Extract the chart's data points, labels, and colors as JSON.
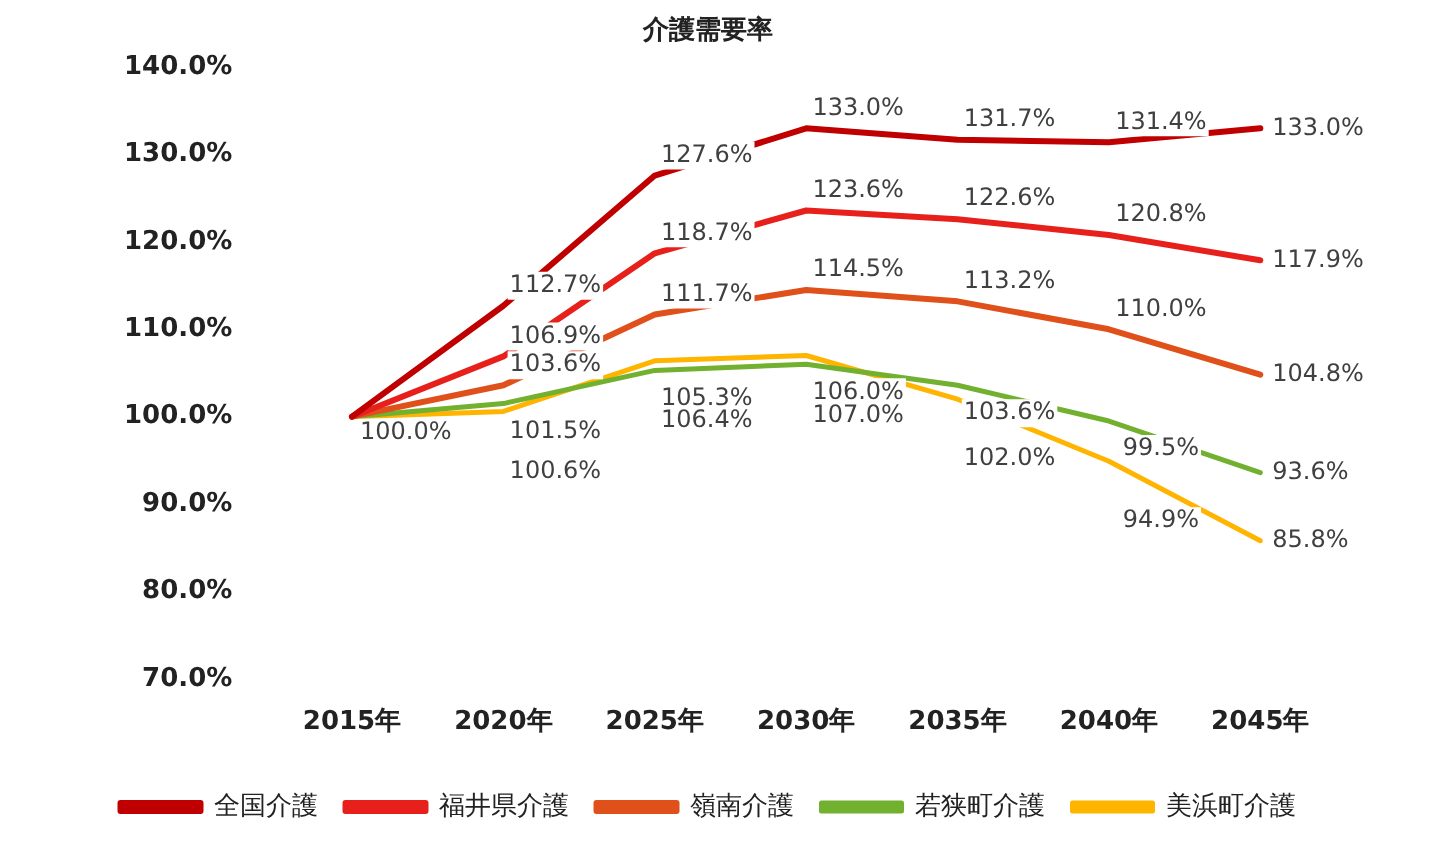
{
  "chart_data": {
    "type": "line",
    "title": "介護需要率",
    "categories": [
      "2015年",
      "2020年",
      "2025年",
      "2030年",
      "2035年",
      "2040年",
      "2045年"
    ],
    "series": [
      {
        "name": "全国介護",
        "color": "#c00000",
        "values": [
          100.0,
          112.7,
          127.6,
          133.0,
          131.7,
          131.4,
          133.0
        ],
        "value_labels": [
          null,
          "112.7%",
          "127.6%",
          "133.0%",
          "131.7%",
          "131.4%",
          "133.0%"
        ]
      },
      {
        "name": "福井県介護",
        "color": "#e8201c",
        "values": [
          100.0,
          106.9,
          118.7,
          123.6,
          122.6,
          120.8,
          117.9
        ],
        "value_labels": [
          null,
          "106.9%",
          "118.7%",
          "123.6%",
          "122.6%",
          "120.8%",
          "117.9%"
        ]
      },
      {
        "name": "嶺南介護",
        "color": "#e0501a",
        "values": [
          100.0,
          103.6,
          111.7,
          114.5,
          113.2,
          110.0,
          104.8
        ],
        "value_labels": [
          null,
          "103.6%",
          "111.7%",
          "114.5%",
          "113.2%",
          "110.0%",
          "104.8%"
        ]
      },
      {
        "name": "若狭町介護",
        "color": "#72b030",
        "values": [
          100.0,
          101.5,
          105.3,
          106.0,
          103.6,
          99.5,
          93.6
        ],
        "value_labels": [
          "100.0%",
          "101.5%",
          "105.3%",
          "106.0%",
          "103.6%",
          "99.5%",
          "93.6%"
        ]
      },
      {
        "name": "美浜町介護",
        "color": "#ffb400",
        "values": [
          100.0,
          100.6,
          106.4,
          107.0,
          102.0,
          94.9,
          85.8
        ],
        "value_labels": [
          null,
          "100.6%",
          "106.4%",
          "107.0%",
          "102.0%",
          "94.9%",
          "85.8%"
        ]
      }
    ],
    "ylim": [
      70,
      140
    ],
    "yticks": [
      {
        "value": 70,
        "label": "70.0%"
      },
      {
        "value": 80,
        "label": "80.0%"
      },
      {
        "value": 90,
        "label": "90.0%"
      },
      {
        "value": 100,
        "label": "100.0%"
      },
      {
        "value": 110,
        "label": "110.0%"
      },
      {
        "value": 120,
        "label": "120.0%"
      },
      {
        "value": 130,
        "label": "130.0%"
      },
      {
        "value": 140,
        "label": "140.0%"
      }
    ],
    "grid": false,
    "legend": "bottom",
    "marker": "none",
    "line_style": "solid"
  }
}
